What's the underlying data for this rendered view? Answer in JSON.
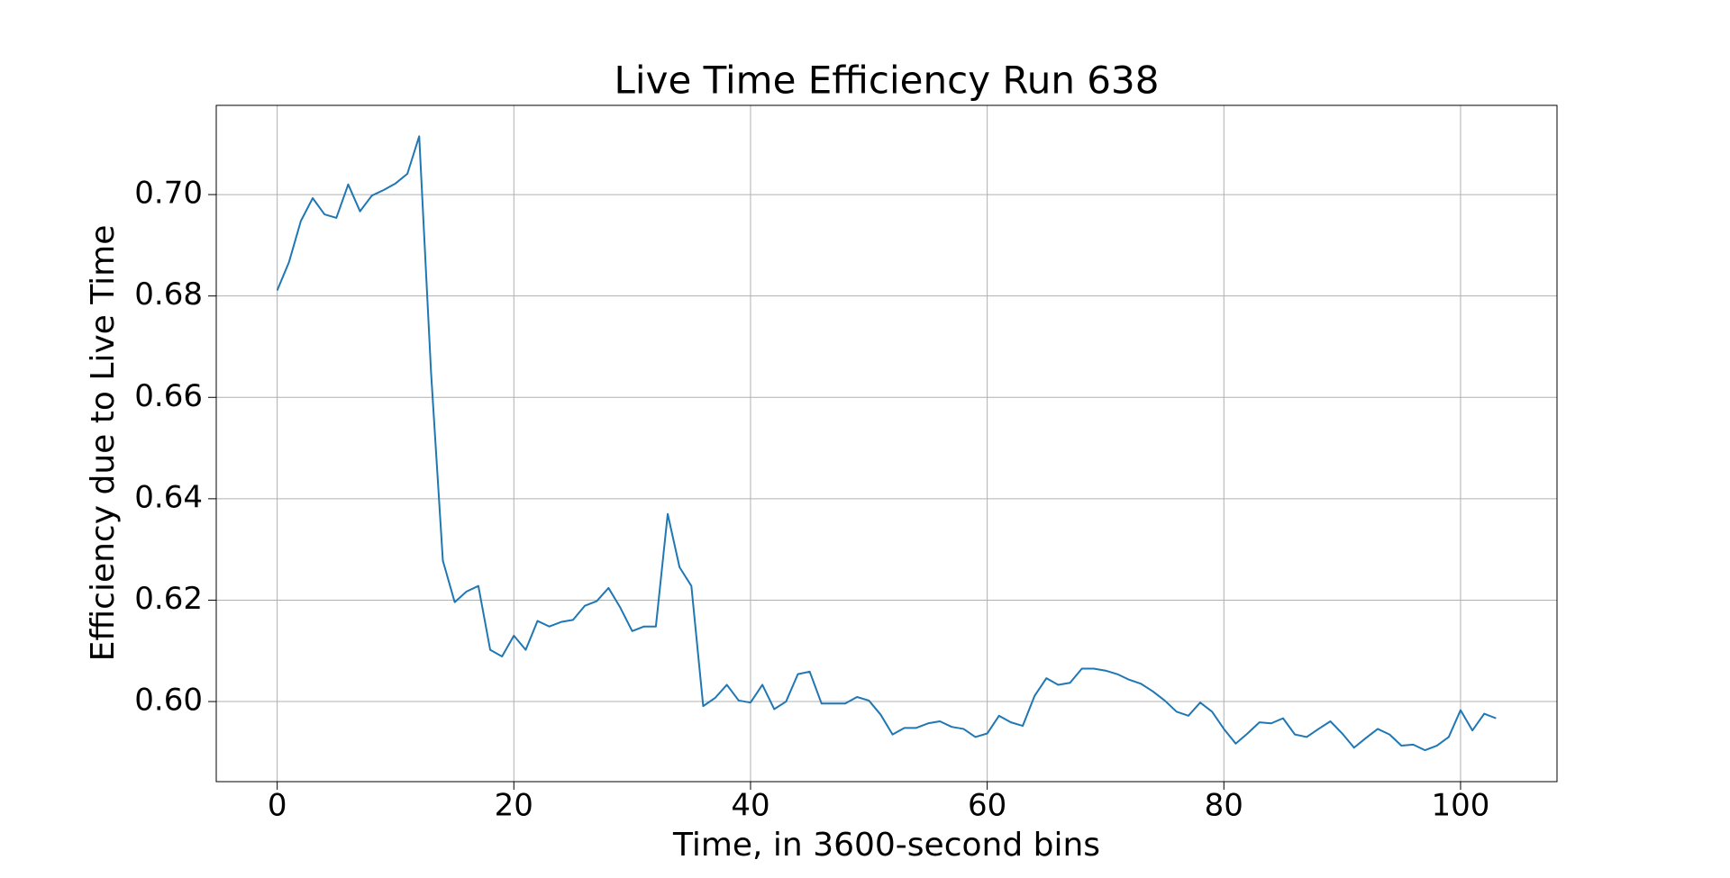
{
  "chart_data": {
    "type": "line",
    "title": "Live Time Efficiency Run 638",
    "x_label": "Time, in 3600-second bins",
    "y_label": "Efficiency due to Live Time",
    "x": [
      0,
      1,
      2,
      3,
      4,
      5,
      6,
      7,
      8,
      9,
      10,
      11,
      12,
      13,
      14,
      15,
      16,
      17,
      18,
      19,
      20,
      21,
      22,
      23,
      24,
      25,
      26,
      27,
      28,
      29,
      30,
      31,
      32,
      33,
      34,
      35,
      36,
      37,
      38,
      39,
      40,
      41,
      42,
      43,
      44,
      45,
      46,
      47,
      48,
      49,
      50,
      51,
      52,
      53,
      54,
      55,
      56,
      57,
      58,
      59,
      60,
      61,
      62,
      63,
      64,
      65,
      66,
      67,
      68,
      69,
      70,
      71,
      72,
      73,
      74,
      75,
      76,
      77,
      78,
      79,
      80,
      81,
      82,
      83,
      84,
      85,
      86,
      87,
      88,
      89,
      90,
      91,
      92,
      93,
      94,
      95,
      96,
      97,
      98,
      99,
      100,
      101,
      102,
      103
    ],
    "series": [
      {
        "color": "#1f77b4",
        "values": [
          0.6811,
          0.6867,
          0.6948,
          0.6993,
          0.6961,
          0.6954,
          0.702,
          0.6967,
          0.6998,
          0.7009,
          0.7022,
          0.7041,
          0.7115,
          0.665,
          0.6278,
          0.6196,
          0.6217,
          0.6228,
          0.6102,
          0.6089,
          0.613,
          0.6102,
          0.6159,
          0.6148,
          0.6157,
          0.6161,
          0.6189,
          0.6198,
          0.6224,
          0.6185,
          0.6139,
          0.6148,
          0.6148,
          0.637,
          0.6265,
          0.6228,
          0.5991,
          0.6007,
          0.6033,
          0.6002,
          0.5998,
          0.6033,
          0.5985,
          0.6,
          0.6054,
          0.6059,
          0.5996,
          0.5996,
          0.5996,
          0.6009,
          0.6002,
          0.5974,
          0.5935,
          0.5948,
          0.5948,
          0.5957,
          0.5961,
          0.595,
          0.5946,
          0.593,
          0.5937,
          0.5972,
          0.5959,
          0.5952,
          0.6011,
          0.6046,
          0.6033,
          0.6037,
          0.6065,
          0.6065,
          0.6061,
          0.6054,
          0.6043,
          0.6035,
          0.602,
          0.6002,
          0.598,
          0.5972,
          0.5998,
          0.598,
          0.5946,
          0.5917,
          0.5937,
          0.5959,
          0.5957,
          0.5967,
          0.5935,
          0.593,
          0.5946,
          0.5961,
          0.5937,
          0.5909,
          0.5928,
          0.5946,
          0.5935,
          0.5913,
          0.5915,
          0.5904,
          0.5913,
          0.593,
          0.5983,
          0.5943,
          0.5976,
          0.5967
        ]
      }
    ],
    "xlim": [
      -5.15,
      108.15
    ],
    "ylim": [
      0.5842,
      0.7176
    ],
    "xticks": [
      0,
      20,
      40,
      60,
      80,
      100
    ],
    "yticks": [
      {
        "value": 0.6,
        "label": "0.60"
      },
      0.62,
      0.64,
      0.66,
      0.68,
      {
        "value": 0.7,
        "label": "0.70"
      }
    ],
    "grid": true
  }
}
